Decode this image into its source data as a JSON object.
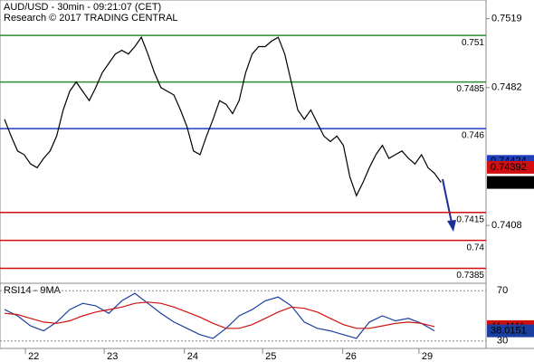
{
  "chart_data": [
    {
      "type": "line",
      "title": "AUD/USD - 30min - 09:21:07 (CET)",
      "subtitle": "Research © 2017 TRADING CENTRAL",
      "xlim": [
        -0.7,
        73.9
      ],
      "xticks": [
        {
          "value": 3.2,
          "label": "22"
        },
        {
          "value": 15.3,
          "label": "23"
        },
        {
          "value": 27.6,
          "label": "24"
        },
        {
          "value": 39.6,
          "label": "25"
        },
        {
          "value": 51.9,
          "label": "26"
        },
        {
          "value": 63.6,
          "label": "29"
        }
      ],
      "ylim": [
        0.7377,
        0.7529
      ],
      "yticks": [
        0.7519,
        0.7482,
        0.7408
      ],
      "series": [
        {
          "name": "AUD/USD",
          "color": "#000000",
          "values": [
            0.7465,
            0.7456,
            0.7448,
            0.7446,
            0.7441,
            0.7439,
            0.7444,
            0.7448,
            0.7456,
            0.747,
            0.748,
            0.7485,
            0.748,
            0.7475,
            0.7482,
            0.749,
            0.7495,
            0.75,
            0.7502,
            0.75,
            0.7504,
            0.7509,
            0.75,
            0.749,
            0.7482,
            0.748,
            0.7478,
            0.747,
            0.7461,
            0.7448,
            0.7446,
            0.7456,
            0.7465,
            0.7475,
            0.7473,
            0.7468,
            0.7475,
            0.749,
            0.75,
            0.7504,
            0.7504,
            0.7507,
            0.7509,
            0.75,
            0.7485,
            0.747,
            0.7465,
            0.747,
            0.7463,
            0.7456,
            0.7453,
            0.7456,
            0.7451,
            0.7434,
            0.7424,
            0.7431,
            0.7439,
            0.7446,
            0.7451,
            0.7444,
            0.7446,
            0.7448,
            0.7444,
            0.7441,
            0.7446,
            0.7439,
            0.7436,
            0.74311
          ]
        }
      ],
      "levels": [
        {
          "value": 0.751,
          "color": "#2e8b2e"
        },
        {
          "value": 0.7485,
          "color": "#2e8b2e"
        },
        {
          "value": 0.746,
          "color": "#1f3fbf"
        },
        {
          "value": 0.7415,
          "color": "#d01010"
        },
        {
          "value": 0.74,
          "color": "#d01010"
        },
        {
          "value": 0.7385,
          "color": "#d01010"
        }
      ],
      "price_labels": [
        {
          "value": 0.74424,
          "color": "#1f3fbf"
        },
        {
          "value": 0.74392,
          "color": "#d01010"
        }
      ]
    },
    {
      "type": "line",
      "title": "RSI14 - 9MA",
      "ylim": [
        24,
        76
      ],
      "yticks": [
        70,
        30
      ],
      "series": [
        {
          "name": "RSI14",
          "color": "#1a3fa0",
          "values": [
            55,
            50,
            42,
            38,
            45,
            55,
            60,
            58,
            52,
            62,
            68,
            60,
            52,
            45,
            40,
            35,
            32,
            40,
            50,
            55,
            62,
            65,
            58,
            45,
            40,
            38,
            35,
            32,
            45,
            50,
            46,
            48,
            44,
            38.0151
          ]
        },
        {
          "name": "9MA",
          "color": "#d01010",
          "values": [
            52,
            51,
            48,
            45,
            44,
            46,
            50,
            53,
            55,
            57,
            60,
            61,
            60,
            57,
            53,
            49,
            44,
            40,
            40,
            43,
            48,
            53,
            57,
            56,
            53,
            48,
            43,
            40,
            40,
            42,
            44,
            45,
            44,
            41.4111
          ]
        }
      ]
    }
  ]
}
